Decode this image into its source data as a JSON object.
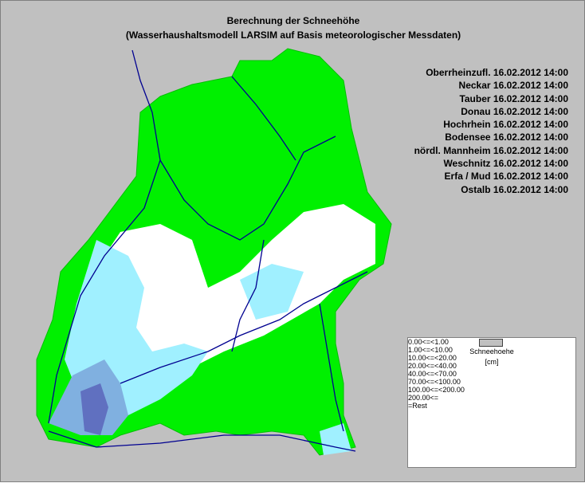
{
  "header": {
    "title": "Berechnung der Schneehöhe",
    "subtitle": "(Wasserhaushaltsmodell LARSIM auf Basis meteorologischer Messdaten)"
  },
  "regions": [
    {
      "name": "Oberrheinzufl.",
      "timestamp": "16.02.2012 14:00"
    },
    {
      "name": "Neckar",
      "timestamp": "16.02.2012 14:00"
    },
    {
      "name": "Tauber",
      "timestamp": "16.02.2012 14:00"
    },
    {
      "name": "Donau",
      "timestamp": "16.02.2012 14:00"
    },
    {
      "name": "Hochrhein",
      "timestamp": "16.02.2012 14:00"
    },
    {
      "name": "Bodensee",
      "timestamp": "16.02.2012 14:00"
    },
    {
      "name": "nördl. Mannheim",
      "timestamp": "16.02.2012 14:00"
    },
    {
      "name": "Weschnitz",
      "timestamp": "16.02.2012 14:00"
    },
    {
      "name": "Erfa / Mud",
      "timestamp": "16.02.2012 14:00"
    },
    {
      "name": "Ostalb",
      "timestamp": "16.02.2012 14:00"
    }
  ],
  "legend": {
    "title": "Schneehoehe",
    "unit": "[cm]",
    "rows": [
      {
        "from": "0.00",
        "op1": "<=",
        "op2": "<",
        "to": "1.00",
        "color": "#00f000"
      },
      {
        "from": "1.00",
        "op1": "<=",
        "op2": "<",
        "to": "10.00",
        "color": "#ffffff"
      },
      {
        "from": "10.00",
        "op1": "<=",
        "op2": "<",
        "to": "20.00",
        "color": "#a0f0ff"
      },
      {
        "from": "20.00",
        "op1": "<=",
        "op2": "<",
        "to": "40.00",
        "color": "#80b0e0"
      },
      {
        "from": "40.00",
        "op1": "<=",
        "op2": "<",
        "to": "70.00",
        "color": "#6b8ecf"
      },
      {
        "from": "70.00",
        "op1": "<=",
        "op2": "<",
        "to": "100.00",
        "color": "#5050b0"
      },
      {
        "from": "100.00",
        "op1": "<=",
        "op2": "<",
        "to": "200.00",
        "color": "#3c2898"
      },
      {
        "from": "200.00",
        "op1": "<=",
        "color": "#400080"
      },
      {
        "op2": "=",
        "to": "Rest",
        "color": "#c0c0c0"
      }
    ]
  }
}
